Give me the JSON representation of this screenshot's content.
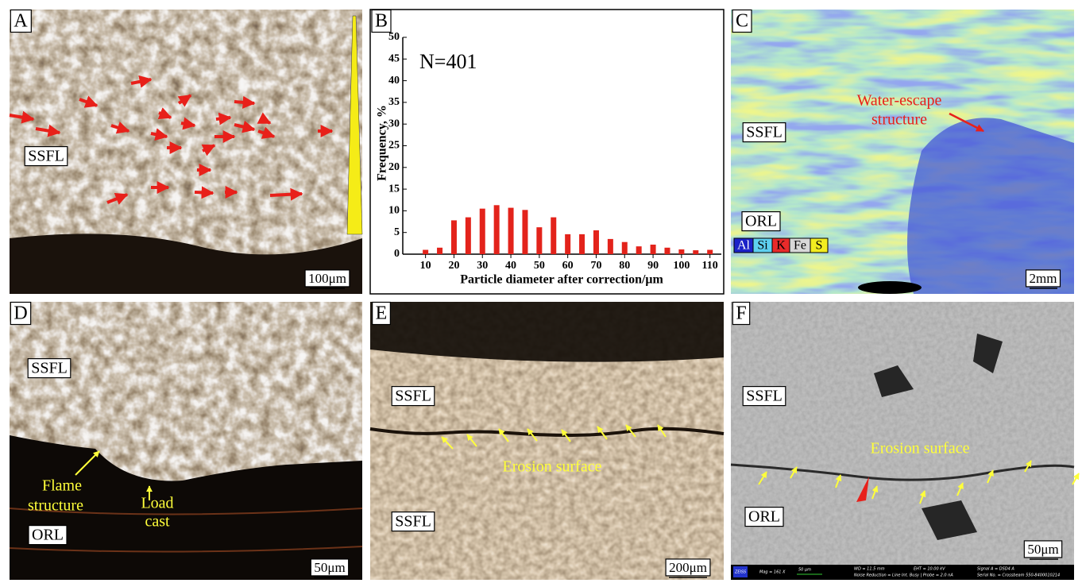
{
  "panel_a": {
    "label": "A",
    "unit": "SSFL",
    "scale_bar": "100μm"
  },
  "panel_b": {
    "label": "B"
  },
  "chart_data": {
    "type": "bar",
    "annotation": "N=401",
    "xlabel": "Particle diameter after correction/μm",
    "ylabel": "Frequency, %",
    "x": [
      10,
      15,
      20,
      25,
      30,
      35,
      40,
      45,
      50,
      55,
      60,
      65,
      70,
      75,
      80,
      85,
      90,
      95,
      100,
      105,
      110
    ],
    "values": [
      1.0,
      1.5,
      7.8,
      8.5,
      10.5,
      11.3,
      10.7,
      10.2,
      6.2,
      8.5,
      4.6,
      4.6,
      5.5,
      3.5,
      2.8,
      1.8,
      2.2,
      1.5,
      1.1,
      0.9,
      1.0
    ],
    "color": "#e3231b",
    "xlim": [
      2,
      114
    ],
    "xticks": [
      10,
      20,
      30,
      40,
      50,
      60,
      70,
      80,
      90,
      100,
      110
    ],
    "ylim": [
      0,
      50
    ],
    "yticks": [
      0,
      5,
      10,
      15,
      20,
      25,
      30,
      35,
      40,
      45,
      50
    ],
    "grid": false
  },
  "panel_c": {
    "label": "C",
    "annotation": [
      "Water-escape",
      "structure"
    ],
    "units": [
      "SSFL",
      "ORL"
    ],
    "legend": [
      "Al",
      "Si",
      "K",
      "Fe",
      "S"
    ],
    "scale_bar": "2mm"
  },
  "panel_d": {
    "label": "D",
    "units": [
      "SSFL",
      "ORL"
    ],
    "annotations": [
      [
        "Flame",
        "structure"
      ],
      [
        "Load",
        "cast"
      ]
    ],
    "scale_bar": "50μm"
  },
  "panel_e": {
    "label": "E",
    "units": [
      "SSFL",
      "SSFL"
    ],
    "annotation": "Erosion surface",
    "scale_bar": "200μm"
  },
  "panel_f": {
    "label": "F",
    "units": [
      "SSFL",
      "ORL"
    ],
    "annotation": "Erosion surface",
    "scale_bar": "50μm",
    "info_bar": [
      "ZEISS",
      "Mag = 161 X",
      "50 μm",
      "WD = 11.5 mm",
      "EHT = 10.00 kV",
      "Noise Reduction = Line Int. Busy | Probe = 2.0 nA",
      "Signal A = DSD4 A",
      "Serial No. = Crossbeam 550-8400010214"
    ]
  }
}
